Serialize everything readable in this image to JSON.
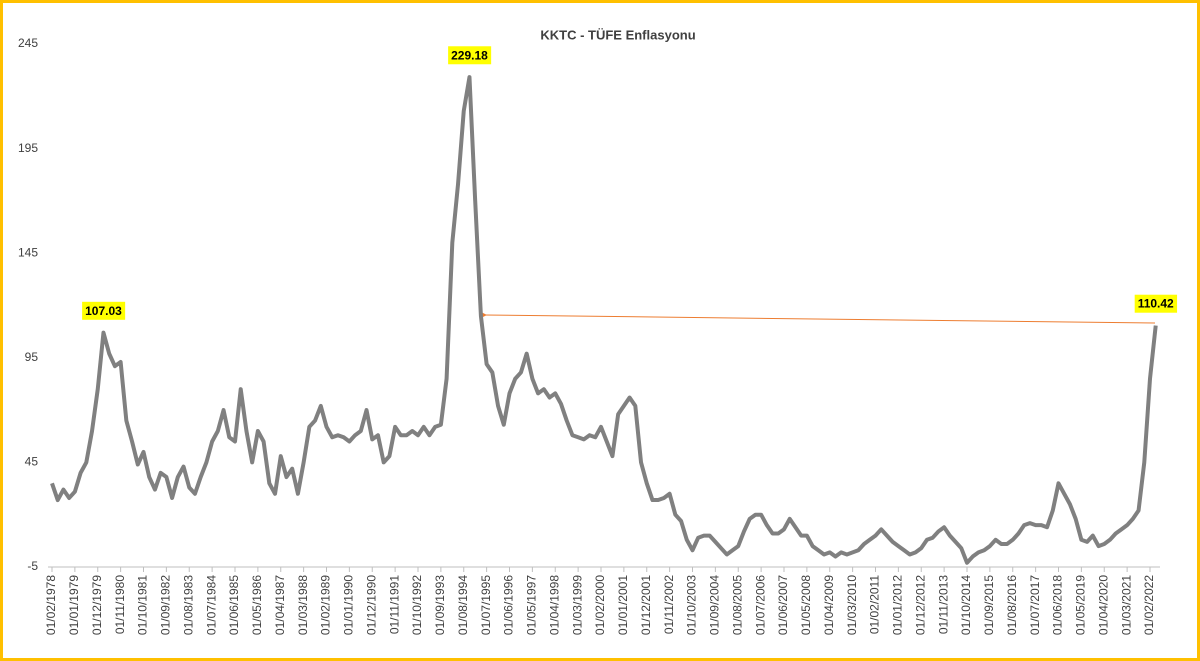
{
  "chart_data": {
    "type": "line",
    "title": "KKTC - TÜFE Enflasyonu",
    "categories": [
      "01/02/1978",
      null,
      null,
      null,
      "01/01/1979",
      null,
      null,
      null,
      "01/12/1979",
      null,
      null,
      null,
      "01/11/1980",
      null,
      null,
      null,
      "01/10/1981",
      null,
      null,
      null,
      "01/09/1982",
      null,
      null,
      null,
      "01/08/1983",
      null,
      null,
      null,
      "01/07/1984",
      null,
      null,
      null,
      "01/06/1985",
      null,
      null,
      null,
      "01/05/1986",
      null,
      null,
      null,
      "01/04/1987",
      null,
      null,
      null,
      "01/03/1988",
      null,
      null,
      null,
      "01/02/1989",
      null,
      null,
      null,
      "01/01/1990",
      null,
      null,
      null,
      "01/12/1990",
      null,
      null,
      null,
      "01/11/1991",
      null,
      null,
      null,
      "01/10/1992",
      null,
      null,
      null,
      "01/09/1993",
      null,
      null,
      null,
      "01/08/1994",
      null,
      null,
      null,
      "01/07/1995",
      null,
      null,
      null,
      "01/06/1996",
      null,
      null,
      null,
      "01/05/1997",
      null,
      null,
      null,
      "01/04/1998",
      null,
      null,
      null,
      "01/03/1999",
      null,
      null,
      null,
      "01/02/2000",
      null,
      null,
      null,
      "01/01/2001",
      null,
      null,
      null,
      "01/12/2001",
      null,
      null,
      null,
      "01/11/2002",
      null,
      null,
      null,
      "01/10/2003",
      null,
      null,
      null,
      "01/09/2004",
      null,
      null,
      null,
      "01/08/2005",
      null,
      null,
      null,
      "01/07/2006",
      null,
      null,
      null,
      "01/06/2007",
      null,
      null,
      null,
      "01/05/2008",
      null,
      null,
      null,
      "01/04/2009",
      null,
      null,
      null,
      "01/03/2010",
      null,
      null,
      null,
      "01/02/2011",
      null,
      null,
      null,
      "01/01/2012",
      null,
      null,
      null,
      "01/12/2012",
      null,
      null,
      null,
      "01/11/2013",
      null,
      null,
      null,
      "01/10/2014",
      null,
      null,
      null,
      "01/09/2015",
      null,
      null,
      null,
      "01/08/2016",
      null,
      null,
      null,
      "01/07/2017",
      null,
      null,
      null,
      "01/06/2018",
      null,
      null,
      null,
      "01/05/2019",
      null,
      null,
      null,
      "01/04/2020",
      null,
      null,
      null,
      "01/03/2021",
      null,
      null,
      null,
      "01/02/2022",
      null
    ],
    "values": [
      35,
      27,
      32,
      28,
      31,
      40,
      45,
      60,
      80,
      107.03,
      97,
      91,
      93,
      65,
      55,
      44,
      50,
      38,
      32,
      40,
      38,
      28,
      38,
      43,
      33,
      30,
      38,
      45,
      55,
      60,
      70,
      57,
      55,
      80,
      60,
      45,
      60,
      55,
      35,
      30,
      48,
      38,
      42,
      30,
      45,
      62,
      65,
      72,
      62,
      57,
      58,
      57,
      55,
      58,
      60,
      70,
      56,
      58,
      45,
      48,
      62,
      58,
      58,
      60,
      58,
      62,
      58,
      62,
      63,
      85,
      150,
      178,
      213,
      229.18,
      170,
      115,
      92,
      88,
      72,
      63,
      78,
      85,
      88,
      97,
      85,
      78,
      80,
      76,
      78,
      73,
      65,
      58,
      57,
      56,
      58,
      57,
      62,
      55,
      48,
      68,
      72,
      76,
      72,
      45,
      35,
      27,
      27,
      28,
      30,
      20,
      17,
      8,
      3,
      9,
      10,
      10,
      7,
      4,
      1,
      3,
      5,
      12,
      18,
      20,
      20,
      15,
      11,
      11,
      13,
      18,
      14,
      10,
      10,
      5,
      3,
      1,
      2,
      0,
      2,
      1,
      2,
      3,
      6,
      8,
      10,
      13,
      10,
      7,
      5,
      3,
      1,
      2,
      4,
      8,
      9,
      12,
      14,
      10,
      7,
      4,
      -3,
      0,
      2,
      3,
      5,
      8,
      6,
      6,
      8,
      11,
      15,
      16,
      15,
      15,
      14,
      22,
      35,
      30,
      25,
      18,
      8,
      7,
      10,
      5,
      6,
      8,
      11,
      13,
      15,
      18,
      22,
      45,
      85,
      110.42
    ],
    "color": "#808080",
    "ylim": [
      -5,
      245
    ],
    "yticks": [
      -5,
      45,
      95,
      145,
      195,
      245
    ],
    "grid": false
  }
}
